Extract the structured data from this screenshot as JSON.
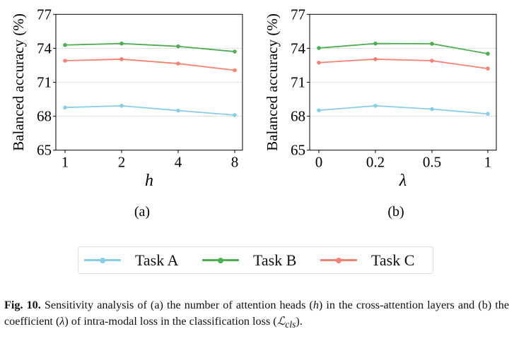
{
  "chart_data": [
    {
      "type": "line",
      "panel_label": "(a)",
      "xlabel": "h",
      "ylabel": "Balanced accuracy (%)",
      "categories": [
        "1",
        "2",
        "4",
        "8"
      ],
      "ylim": [
        65,
        77
      ],
      "yticks": [
        65,
        68,
        71,
        74,
        77
      ],
      "grid": "horizontal dashed",
      "series": [
        {
          "name": "Task A",
          "color": "#87ceeb",
          "values": [
            68.77,
            68.92,
            68.5,
            68.1
          ]
        },
        {
          "name": "Task B",
          "color": "#4caf50",
          "values": [
            74.29,
            74.42,
            74.17,
            73.71
          ]
        },
        {
          "name": "Task C",
          "color": "#fa8072",
          "values": [
            72.9,
            73.04,
            72.65,
            72.06
          ]
        }
      ]
    },
    {
      "type": "line",
      "panel_label": "(b)",
      "xlabel": "λ",
      "ylabel": "Balanced accuracy (%)",
      "categories": [
        "0",
        "0.2",
        "0.5",
        "1"
      ],
      "ylim": [
        65,
        77
      ],
      "yticks": [
        65,
        68,
        71,
        74,
        77
      ],
      "grid": "horizontal dashed",
      "series": [
        {
          "name": "Task A",
          "color": "#87ceeb",
          "values": [
            68.52,
            68.92,
            68.63,
            68.21
          ]
        },
        {
          "name": "Task B",
          "color": "#4caf50",
          "values": [
            74.02,
            74.42,
            74.4,
            73.52
          ]
        },
        {
          "name": "Task C",
          "color": "#fa8072",
          "values": [
            72.73,
            73.04,
            72.9,
            72.21
          ]
        }
      ]
    }
  ],
  "legend": {
    "placement": "bottom-center",
    "items": [
      {
        "label": "Task A",
        "color": "#87ceeb"
      },
      {
        "label": "Task B",
        "color": "#4caf50"
      },
      {
        "label": "Task C",
        "color": "#fa8072"
      }
    ]
  },
  "caption": {
    "label": "Fig. 10.",
    "text_1": " Sensitivity analysis of (a) the number of attention heads (",
    "h": "h",
    "text_2": ") in the cross-attention layers and (b) the coefficient (",
    "lambda": "λ",
    "text_3": ") of intra-modal loss in the classification loss (",
    "loss": "ℒ",
    "loss_sub": "cls",
    "text_4": ")."
  }
}
